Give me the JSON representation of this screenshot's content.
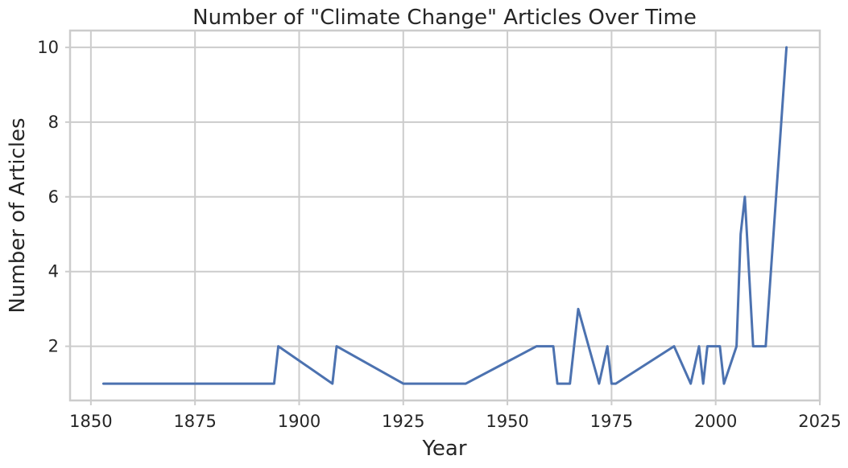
{
  "chart_data": {
    "type": "line",
    "title": "Number of \"Climate Change\" Articles Over Time",
    "xlabel": "Year",
    "ylabel": "Number of Articles",
    "xlim": [
      1845,
      2025
    ],
    "ylim": [
      0.55,
      10.45
    ],
    "xticks": [
      1850,
      1875,
      1900,
      1925,
      1950,
      1975,
      2000,
      2025
    ],
    "yticks": [
      2,
      4,
      6,
      8,
      10
    ],
    "grid": true,
    "line_color": "#4c72b0",
    "grid_color": "#cccccc",
    "series": [
      {
        "x": [
          1853,
          1894,
          1895,
          1908,
          1909,
          1925,
          1940,
          1957,
          1961,
          1962,
          1965,
          1967,
          1972,
          1974,
          1975,
          1976,
          1990,
          1994,
          1996,
          1997,
          1998,
          2001,
          2002,
          2005,
          2006,
          2007,
          2009,
          2012,
          2017
        ],
        "y": [
          1,
          1,
          2,
          1,
          2,
          1,
          1,
          2,
          2,
          1,
          1,
          3,
          1,
          2,
          1,
          1,
          2,
          1,
          2,
          1,
          2,
          2,
          1,
          2,
          5,
          6,
          2,
          2,
          10
        ]
      }
    ]
  }
}
